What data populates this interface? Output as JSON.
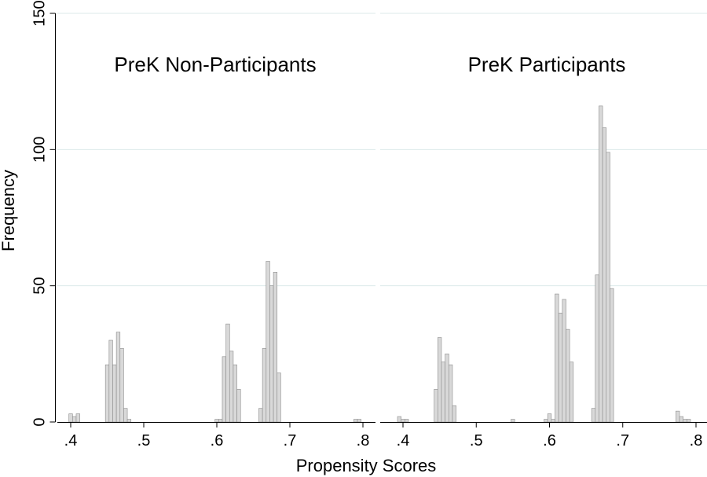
{
  "chart_data": {
    "type": "bar",
    "subtype": "histogram",
    "xlabel": "Propensity Scores",
    "ylabel": "Frequency",
    "ylim": [
      0,
      150
    ],
    "xlim": [
      0.38,
      0.81
    ],
    "y_ticks": [
      0,
      50,
      100,
      150
    ],
    "x_ticks": [
      ".4",
      ".5",
      ".6",
      ".7",
      ".8"
    ],
    "x_tick_values": [
      0.4,
      0.5,
      0.6,
      0.7,
      0.8
    ],
    "bin_width": 0.005,
    "grid": true,
    "colors": {
      "bar_fill": "#d9d9d9",
      "bar_stroke": "#8c8c8c",
      "grid": "#dce9e9"
    },
    "panels": [
      {
        "title": "PreK Non-Participants",
        "bins": [
          {
            "x": 0.4,
            "y": 3
          },
          {
            "x": 0.405,
            "y": 2
          },
          {
            "x": 0.41,
            "y": 3
          },
          {
            "x": 0.45,
            "y": 21
          },
          {
            "x": 0.455,
            "y": 30
          },
          {
            "x": 0.46,
            "y": 21
          },
          {
            "x": 0.465,
            "y": 33
          },
          {
            "x": 0.47,
            "y": 27
          },
          {
            "x": 0.475,
            "y": 5
          },
          {
            "x": 0.48,
            "y": 1
          },
          {
            "x": 0.6,
            "y": 1
          },
          {
            "x": 0.605,
            "y": 1
          },
          {
            "x": 0.61,
            "y": 24
          },
          {
            "x": 0.615,
            "y": 36
          },
          {
            "x": 0.62,
            "y": 26
          },
          {
            "x": 0.625,
            "y": 21
          },
          {
            "x": 0.63,
            "y": 12
          },
          {
            "x": 0.66,
            "y": 5
          },
          {
            "x": 0.665,
            "y": 27
          },
          {
            "x": 0.67,
            "y": 59
          },
          {
            "x": 0.675,
            "y": 50
          },
          {
            "x": 0.68,
            "y": 55
          },
          {
            "x": 0.685,
            "y": 18
          },
          {
            "x": 0.79,
            "y": 1
          },
          {
            "x": 0.795,
            "y": 1
          }
        ]
      },
      {
        "title": "PreK Participants",
        "bins": [
          {
            "x": 0.395,
            "y": 2
          },
          {
            "x": 0.4,
            "y": 1
          },
          {
            "x": 0.405,
            "y": 1
          },
          {
            "x": 0.445,
            "y": 12
          },
          {
            "x": 0.45,
            "y": 31
          },
          {
            "x": 0.455,
            "y": 22
          },
          {
            "x": 0.46,
            "y": 25
          },
          {
            "x": 0.465,
            "y": 21
          },
          {
            "x": 0.47,
            "y": 6
          },
          {
            "x": 0.55,
            "y": 1
          },
          {
            "x": 0.595,
            "y": 1
          },
          {
            "x": 0.6,
            "y": 3
          },
          {
            "x": 0.605,
            "y": 1
          },
          {
            "x": 0.61,
            "y": 47
          },
          {
            "x": 0.615,
            "y": 40
          },
          {
            "x": 0.62,
            "y": 45
          },
          {
            "x": 0.625,
            "y": 34
          },
          {
            "x": 0.63,
            "y": 22
          },
          {
            "x": 0.66,
            "y": 5
          },
          {
            "x": 0.665,
            "y": 54
          },
          {
            "x": 0.67,
            "y": 116
          },
          {
            "x": 0.675,
            "y": 108
          },
          {
            "x": 0.68,
            "y": 99
          },
          {
            "x": 0.685,
            "y": 49
          },
          {
            "x": 0.775,
            "y": 4
          },
          {
            "x": 0.78,
            "y": 2
          },
          {
            "x": 0.785,
            "y": 1
          },
          {
            "x": 0.79,
            "y": 1
          }
        ]
      }
    ]
  }
}
